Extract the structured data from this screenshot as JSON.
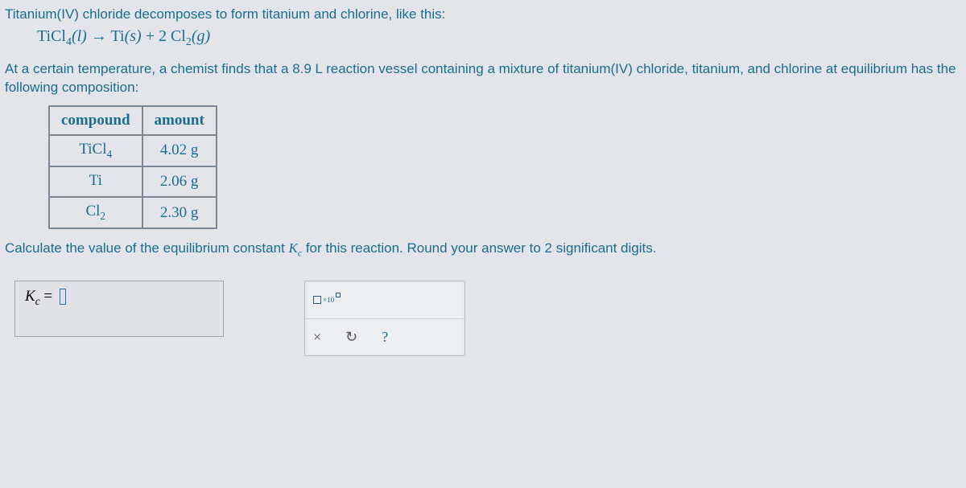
{
  "intro": "Titanium(IV) chloride decomposes to form titanium and chlorine, like this:",
  "equation": {
    "lhs": "TiCl",
    "lhs_sub": "4",
    "lhs_phase": "(l)",
    "arrow": "→",
    "rhs1": "Ti",
    "rhs1_phase": "(s)",
    "plus": "+",
    "coef": "2 ",
    "rhs2": "Cl",
    "rhs2_sub": "2",
    "rhs2_phase": "(g)"
  },
  "context_a": "At a certain temperature, a chemist finds that a ",
  "context_vol": "8.9 L",
  "context_b": " reaction vessel containing a mixture of titanium(IV) chloride, titanium, and chlorine at equilibrium has the following composition:",
  "table": {
    "headers": [
      "compound",
      "amount"
    ],
    "rows": [
      {
        "compound_html": "TiCl",
        "compound_sub": "4",
        "amount": "4.02 g"
      },
      {
        "compound_html": "Ti",
        "compound_sub": "",
        "amount": "2.06 g"
      },
      {
        "compound_html": "Cl",
        "compound_sub": "2",
        "amount": "2.30 g"
      }
    ]
  },
  "calc_a": "Calculate the value of the equilibrium constant ",
  "calc_k": "K",
  "calc_ksub": "c",
  "calc_b": " for this reaction. Round your answer to ",
  "calc_sig": "2",
  "calc_c": " significant digits.",
  "answer": {
    "k": "K",
    "ksub": "c",
    "eq": " = "
  },
  "tool": {
    "x10": "×10",
    "close": "×",
    "reset": "↻",
    "help": "?"
  },
  "chevron": "⌄",
  "colors": {
    "text": "#1a6d8f",
    "border": "#7d8796",
    "bg": "#e3e5ea"
  }
}
